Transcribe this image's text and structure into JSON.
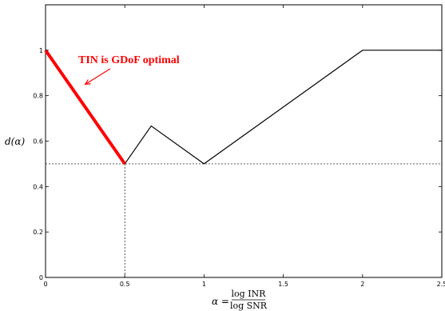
{
  "chart_data": {
    "type": "line",
    "title": "",
    "xlabel": {
      "lhs": "α =",
      "numerator": "log INR",
      "denominator": "log SNR"
    },
    "ylabel": "d(α)",
    "xlim": [
      0,
      2.5
    ],
    "ylim": [
      0,
      1.2
    ],
    "xticks": [
      0,
      0.5,
      1,
      1.5,
      2,
      2.5
    ],
    "xtick_labels": [
      "0",
      "0.5",
      "1",
      "1.5",
      "2",
      "2.5"
    ],
    "yticks": [
      0,
      0.2,
      0.4,
      0.6,
      0.8,
      1
    ],
    "ytick_labels": [
      "0",
      "0.2",
      "0.4",
      "0.6",
      "0.8",
      "1"
    ],
    "grid": false,
    "series": [
      {
        "color": "#000000",
        "x": [
          0.5,
          0.6667,
          1,
          2,
          2.5
        ],
        "y": [
          0.5,
          0.6667,
          0.5,
          1,
          1
        ]
      },
      {
        "color": "#ff0000",
        "x": [
          0,
          0.5
        ],
        "y": [
          1,
          0.5
        ]
      }
    ],
    "reference_lines": [
      {
        "orientation": "horizontal",
        "y": 0.5,
        "x_range": [
          0,
          2.5
        ],
        "style": "dashed"
      },
      {
        "orientation": "vertical",
        "x": 0.5,
        "y_range": [
          0,
          0.5
        ],
        "style": "dashed"
      }
    ],
    "annotations": [
      {
        "text": "TIN is GDoF optimal",
        "color": "#ff0000",
        "arrow_to": {
          "x": 0.25,
          "y": 0.85
        }
      }
    ]
  }
}
